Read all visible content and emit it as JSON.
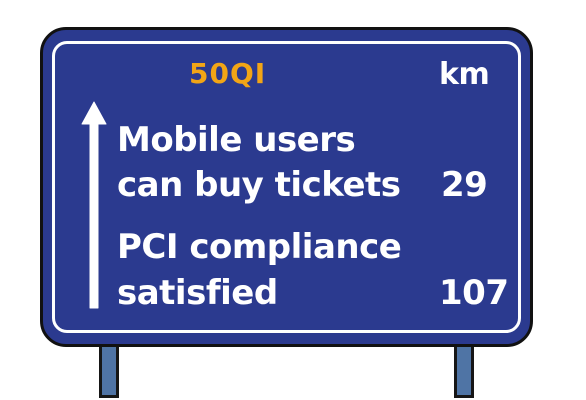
{
  "colors": {
    "sign_background": "#2b3a8f",
    "sign_text": "#ffffff",
    "code_text": "#f2a516",
    "post": "#4f74a5",
    "outline": "#111111"
  },
  "sign": {
    "code": "50QI",
    "unit": "km",
    "destinations": [
      {
        "line1": "Mobile users",
        "line2": "can buy tickets",
        "distance": "29"
      },
      {
        "line1": "PCI compliance",
        "line2": "satisfied",
        "distance": "107"
      }
    ],
    "arrow_icon": "up-arrow-icon"
  }
}
